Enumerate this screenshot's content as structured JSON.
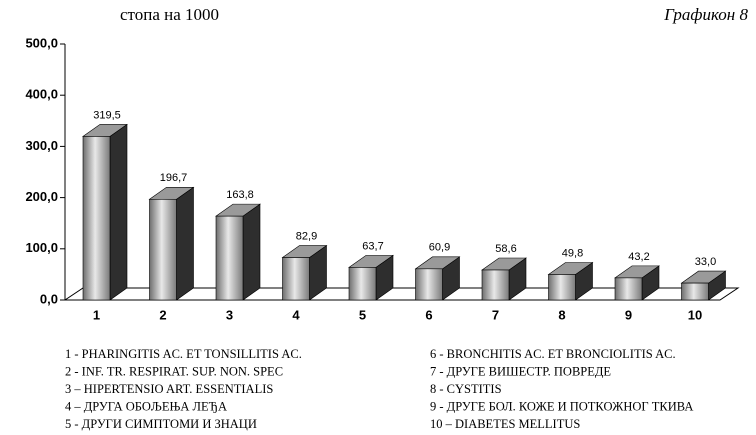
{
  "chart_data": {
    "type": "bar3d",
    "title": "Графикон 8",
    "subtitle": "стопа на 1000",
    "categories": [
      "1",
      "2",
      "3",
      "4",
      "5",
      "6",
      "7",
      "8",
      "9",
      "10"
    ],
    "values": [
      319.5,
      196.7,
      163.8,
      82.9,
      63.7,
      60.9,
      58.6,
      49.8,
      43.2,
      33.0
    ],
    "value_labels": [
      "319,5",
      "196,7",
      "163,8",
      "82,9",
      "63,7",
      "60,9",
      "58,6",
      "49,8",
      "43,2",
      "33,0"
    ],
    "color": "#9a9a9a",
    "ylim": [
      0,
      500
    ],
    "yticks": [
      {
        "value": 0,
        "label": "0,0"
      },
      {
        "value": 100,
        "label": "100,0"
      },
      {
        "value": 200,
        "label": "200,0"
      },
      {
        "value": 300,
        "label": "300,0"
      },
      {
        "value": 400,
        "label": "400,0"
      },
      {
        "value": 500,
        "label": "500,0"
      }
    ],
    "grid": false,
    "notes": [
      "1 - PHARINGITIS AC. ET TONSILLITIS AC.",
      "2 - INF. TR. RESPIRAT. SUP. NON. SPEC",
      "3 – HIPERTENSIO ART. ESSENTIALIS",
      "4 – ДРУГА ОБОЉЕЊА ЛЕЂА",
      "5 - ДРУГИ СИМПТОМИ И ЗНАЦИ",
      "6 - BRONCHITIS AC. ET BRONCIOLITIS AC.",
      "7 - ДРУГЕ ВИШЕСТР. ПОВРЕДЕ",
      "8 - CYSTITIS",
      "9 - ДРУГЕ БОЛ. КОЖЕ И ПОТКОЖНОГ ТКИВА",
      "10 – DIABETES MELLITUS"
    ]
  }
}
